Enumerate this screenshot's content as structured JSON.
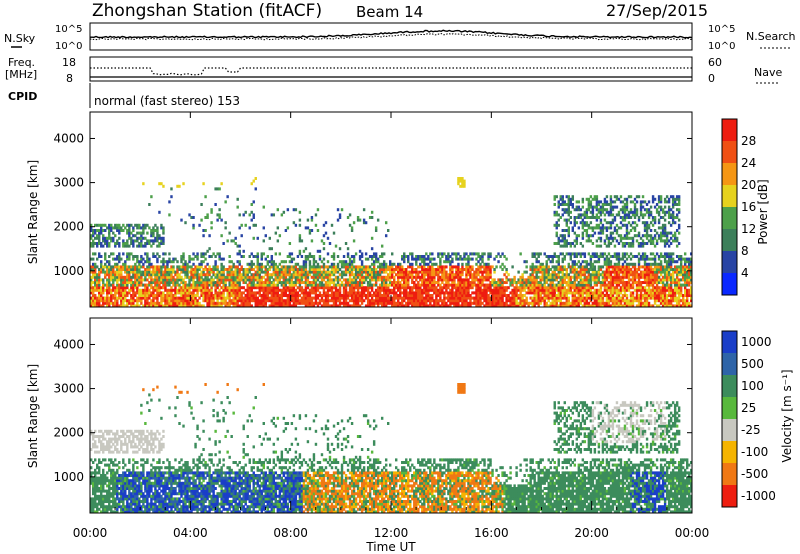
{
  "header": {
    "station": "Zhongshan Station (fitACF)",
    "beam": "Beam 14",
    "date": "27/Sep/2015"
  },
  "top_panel": {
    "left_label": "N.Sky",
    "left_ticks": [
      "10^5",
      "10^0"
    ],
    "right_label": "N.Search",
    "right_ticks": [
      "10^5",
      "10^0"
    ]
  },
  "freq_panel": {
    "left_label_line1": "Freq.",
    "left_label_line2": "[MHz]",
    "left_ticks": [
      "18",
      "8"
    ],
    "right_label": "Nave",
    "right_ticks": [
      "60",
      "0"
    ]
  },
  "cpid": {
    "label": "CPID",
    "text": "normal (fast stereo) 153"
  },
  "chart_data": [
    {
      "type": "heatmap",
      "name": "power",
      "ylabel": "Slant Range [km]",
      "xlabel": "Time UT",
      "x_range_hours": [
        0,
        24
      ],
      "y_range_km": [
        180,
        4600
      ],
      "y_ticks": [
        1000,
        2000,
        3000,
        4000
      ],
      "colorbar": {
        "label": "Power [dB]",
        "ticks": [
          "4",
          "8",
          "12",
          "16",
          "20",
          "24",
          "28"
        ],
        "colors": [
          "#0a28ff",
          "#2844a4",
          "#3c7f5a",
          "#4da04a",
          "#e6d21e",
          "#f59614",
          "#f05014",
          "#ee1c10"
        ]
      }
    },
    {
      "type": "heatmap",
      "name": "velocity",
      "ylabel": "Slant Range [km]",
      "xlabel": "Time UT",
      "x_range_hours": [
        0,
        24
      ],
      "y_range_km": [
        180,
        4600
      ],
      "y_ticks": [
        1000,
        2000,
        3000,
        4000
      ],
      "colorbar": {
        "label": "Velocity [m s⁻¹]",
        "ticks": [
          "1000",
          "500",
          "100",
          "25",
          "-25",
          "-100",
          "-500",
          "-1000"
        ],
        "colors": [
          "#1a3ec8",
          "#2e64a8",
          "#3c8c5c",
          "#58b83c",
          "#c8c8c0",
          "#f5b400",
          "#f07814",
          "#ee1e10"
        ]
      }
    }
  ],
  "x_axis": {
    "ticks": [
      "00:00",
      "04:00",
      "08:00",
      "12:00",
      "16:00",
      "20:00",
      "00:00"
    ],
    "label": "Time UT"
  }
}
